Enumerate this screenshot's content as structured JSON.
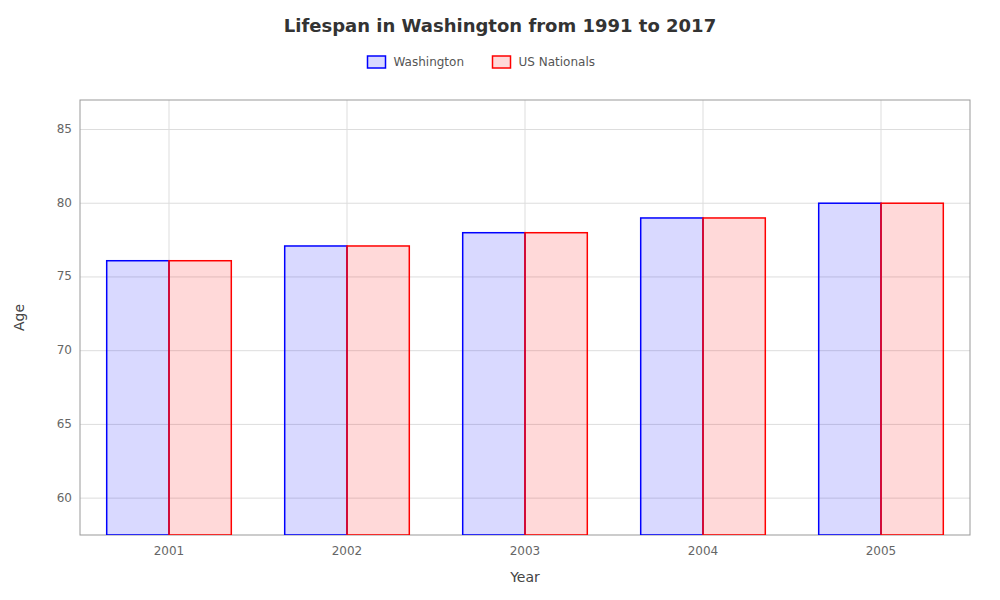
{
  "chart_data": {
    "type": "bar",
    "title": "Lifespan in Washington from 1991 to 2017",
    "xlabel": "Year",
    "ylabel": "Age",
    "categories": [
      "2001",
      "2002",
      "2003",
      "2004",
      "2005"
    ],
    "series": [
      {
        "name": "Washington",
        "color": "#0000ff",
        "values": [
          76.1,
          77.1,
          78.0,
          79.0,
          80.0
        ]
      },
      {
        "name": "US Nationals",
        "color": "#ff0000",
        "values": [
          76.1,
          77.1,
          78.0,
          79.0,
          80.0
        ]
      }
    ],
    "ylim": [
      57.5,
      87
    ],
    "yticks": [
      60,
      65,
      70,
      75,
      80,
      85
    ],
    "grid": true,
    "legend": "top"
  }
}
